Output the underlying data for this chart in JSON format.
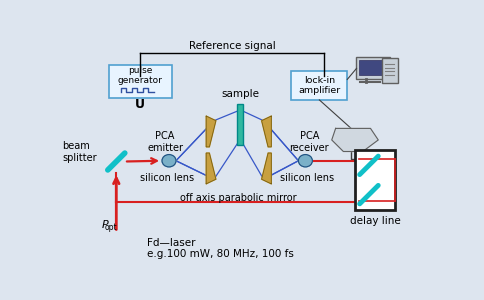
{
  "bg_color": "#dde5ef",
  "fig_w": 4.84,
  "fig_h": 3.0,
  "dpi": 100,
  "reference_signal_text": "Reference signal",
  "pulse_gen_text": "pulse\ngenerator",
  "U_text": "U",
  "PCA_emitter_text": "PCA\nemitter",
  "PCA_receiver_text": "PCA\nreceiver",
  "beam_splitter_text": "beam\nsplitter",
  "silicon_lens_left_text": "silicon lens",
  "silicon_lens_right_text": "silicon lens",
  "off_axis_text": "off axis parabolic mirror",
  "sample_text": "sample",
  "lock_in_text": "lock-in\namplifier",
  "delay_line_text": "delay line",
  "laser_text": "Fd—laser\ne.g.100 mW, 80 MHz, 100 fs",
  "Popt_text": "P",
  "Popt_sub": "opt",
  "mirror_color": "#c8a040",
  "mirror_dark": "#7a6010",
  "sample_color": "#30b8a0",
  "lens_color": "#7ab0c8",
  "beam_blue": "#3858c8",
  "beam_red": "#d82020",
  "beam_cyan": "#10c0c8",
  "box_fill": "#e8f4ff",
  "box_edge": "#50a0d0",
  "delay_fill": "#ffffff",
  "delay_edge": "#202020"
}
